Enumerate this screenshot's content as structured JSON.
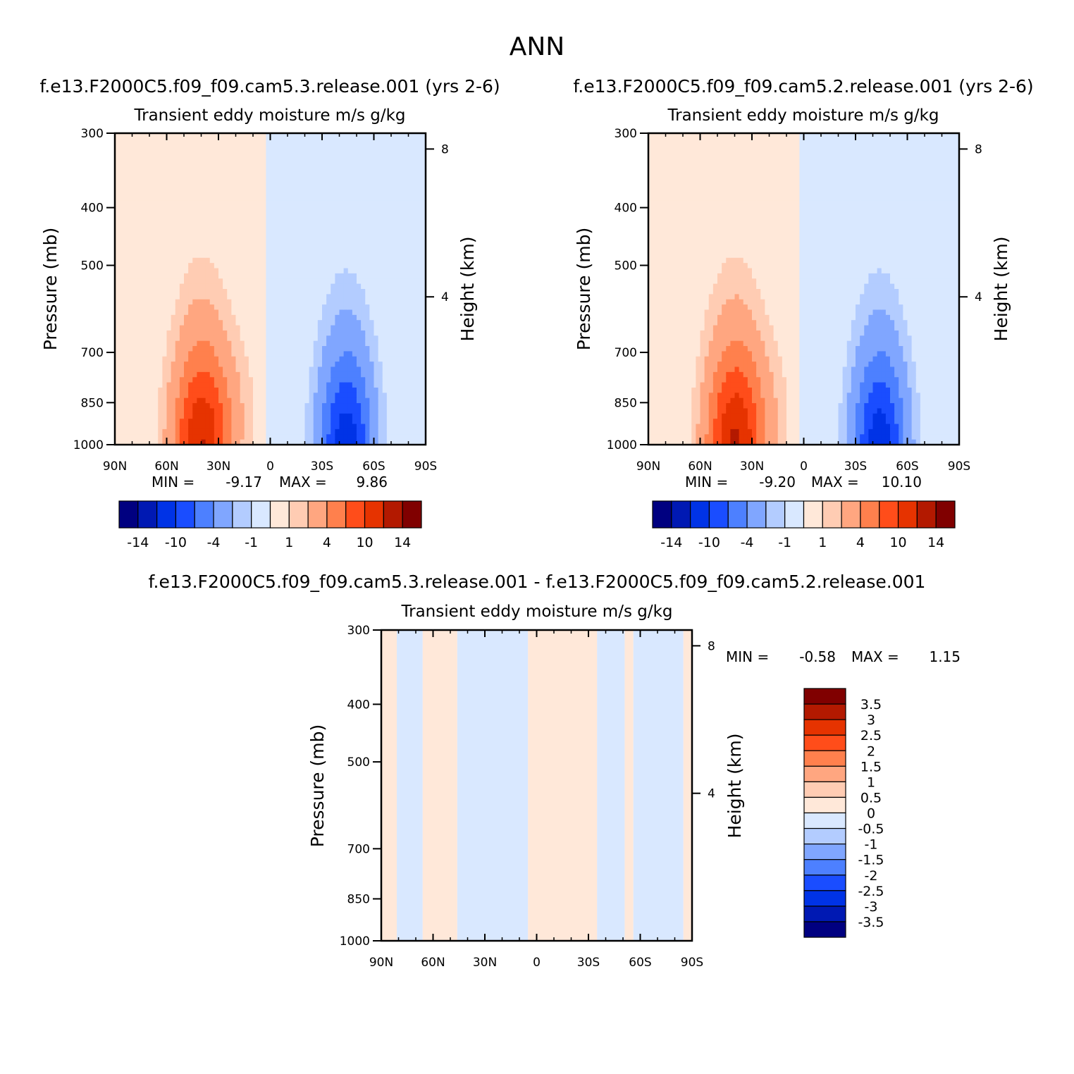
{
  "figure_title": "ANN",
  "colors": {
    "main_scale": [
      "#000080",
      "#0019b3",
      "#0033e6",
      "#1a4dff",
      "#4d80ff",
      "#80a6ff",
      "#b3ccff",
      "#d9e8ff",
      "#ffe8d9",
      "#ffccb3",
      "#ffa680",
      "#ff804d",
      "#ff4d1a",
      "#e63300",
      "#b31900",
      "#800000"
    ],
    "diff_scale": [
      "#000080",
      "#0019b3",
      "#0033e6",
      "#1a4dff",
      "#4d80ff",
      "#80a6ff",
      "#b3ccff",
      "#d9e8ff",
      "#ffe8d9",
      "#ffccb3",
      "#ffa680",
      "#ff804d",
      "#ff4d1a",
      "#e63300",
      "#b31900",
      "#800000"
    ]
  },
  "chart_data": [
    {
      "type": "heatmap",
      "id": "case",
      "title": "f.e13.F2000C5.f09_f09.cam5.3.release.001  (yrs  2-6)",
      "subtitle": "Transient  eddy  moisture m/s  g/kg",
      "xlabel": "",
      "ylabel": "Pressure  (mb)",
      "y2label": "Height  (km)",
      "x_ticks": [
        "90N",
        "60N",
        "30N",
        "0",
        "30S",
        "60S",
        "90S"
      ],
      "y_ticks": [
        "300",
        "400",
        "500",
        "700",
        "850",
        "1000"
      ],
      "y2_ticks": [
        "8",
        "4"
      ],
      "xlim": [
        90,
        -90
      ],
      "ylim": [
        1000,
        300
      ],
      "min_label": "MIN =",
      "min_value": "-9.17",
      "max_label": "MAX =",
      "max_value": "9.86",
      "colorbar_labels": [
        "-14",
        "-10",
        "-4",
        "-1",
        "1",
        "4",
        "10",
        "14"
      ],
      "field": {
        "north_max": 9.86,
        "north_lat": 40,
        "south_min": -9.17,
        "south_lat": -44
      }
    },
    {
      "type": "heatmap",
      "id": "control",
      "title": "f.e13.F2000C5.f09_f09.cam5.2.release.001  (yrs  2-6)",
      "subtitle": "Transient  eddy  moisture m/s  g/kg",
      "xlabel": "",
      "ylabel": "Pressure  (mb)",
      "y2label": "Height  (km)",
      "x_ticks": [
        "90N",
        "60N",
        "30N",
        "0",
        "30S",
        "60S",
        "90S"
      ],
      "y_ticks": [
        "300",
        "400",
        "500",
        "700",
        "850",
        "1000"
      ],
      "y2_ticks": [
        "8",
        "4"
      ],
      "xlim": [
        90,
        -90
      ],
      "ylim": [
        1000,
        300
      ],
      "min_label": "MIN =",
      "min_value": "-9.20",
      "max_label": "MAX =",
      "max_value": "10.10",
      "colorbar_labels": [
        "-14",
        "-10",
        "-4",
        "-1",
        "1",
        "4",
        "10",
        "14"
      ],
      "field": {
        "north_max": 10.1,
        "north_lat": 40,
        "south_min": -9.2,
        "south_lat": -44
      }
    },
    {
      "type": "heatmap",
      "id": "difference",
      "title": "f.e13.F2000C5.f09_f09.cam5.3.release.001  -  f.e13.F2000C5.f09_f09.cam5.2.release.001",
      "subtitle": "Transient  eddy  moisture m/s  g/kg",
      "xlabel": "",
      "ylabel": "Pressure  (mb)",
      "y2label": "Height  (km)",
      "x_ticks": [
        "90N",
        "60N",
        "30N",
        "0",
        "30S",
        "60S",
        "90S"
      ],
      "y_ticks": [
        "300",
        "400",
        "500",
        "700",
        "850",
        "1000"
      ],
      "y2_ticks": [
        "8",
        "4"
      ],
      "xlim": [
        90,
        -90
      ],
      "ylim": [
        1000,
        300
      ],
      "min_label": "MIN =",
      "min_value": "-0.58",
      "max_label": "MAX =",
      "max_value": "1.15",
      "colorbar_labels": [
        "3.5",
        "3",
        "2.5",
        "2",
        "1.5",
        "1",
        "0.5",
        "0",
        "-0.5",
        "-1",
        "-1.5",
        "-2",
        "-2.5",
        "-3",
        "-3.5"
      ],
      "bands": [
        {
          "from": 90,
          "to": 81,
          "sign": "positive"
        },
        {
          "from": 81,
          "to": 66,
          "sign": "negative"
        },
        {
          "from": 66,
          "to": 46,
          "sign": "positive"
        },
        {
          "from": 46,
          "to": 5,
          "sign": "negative"
        },
        {
          "from": 5,
          "to": -35,
          "sign": "positive"
        },
        {
          "from": -35,
          "to": -51,
          "sign": "negative"
        },
        {
          "from": -51,
          "to": -56,
          "sign": "positive"
        },
        {
          "from": -56,
          "to": -85,
          "sign": "negative"
        },
        {
          "from": -85,
          "to": -90,
          "sign": "positive"
        }
      ]
    }
  ]
}
